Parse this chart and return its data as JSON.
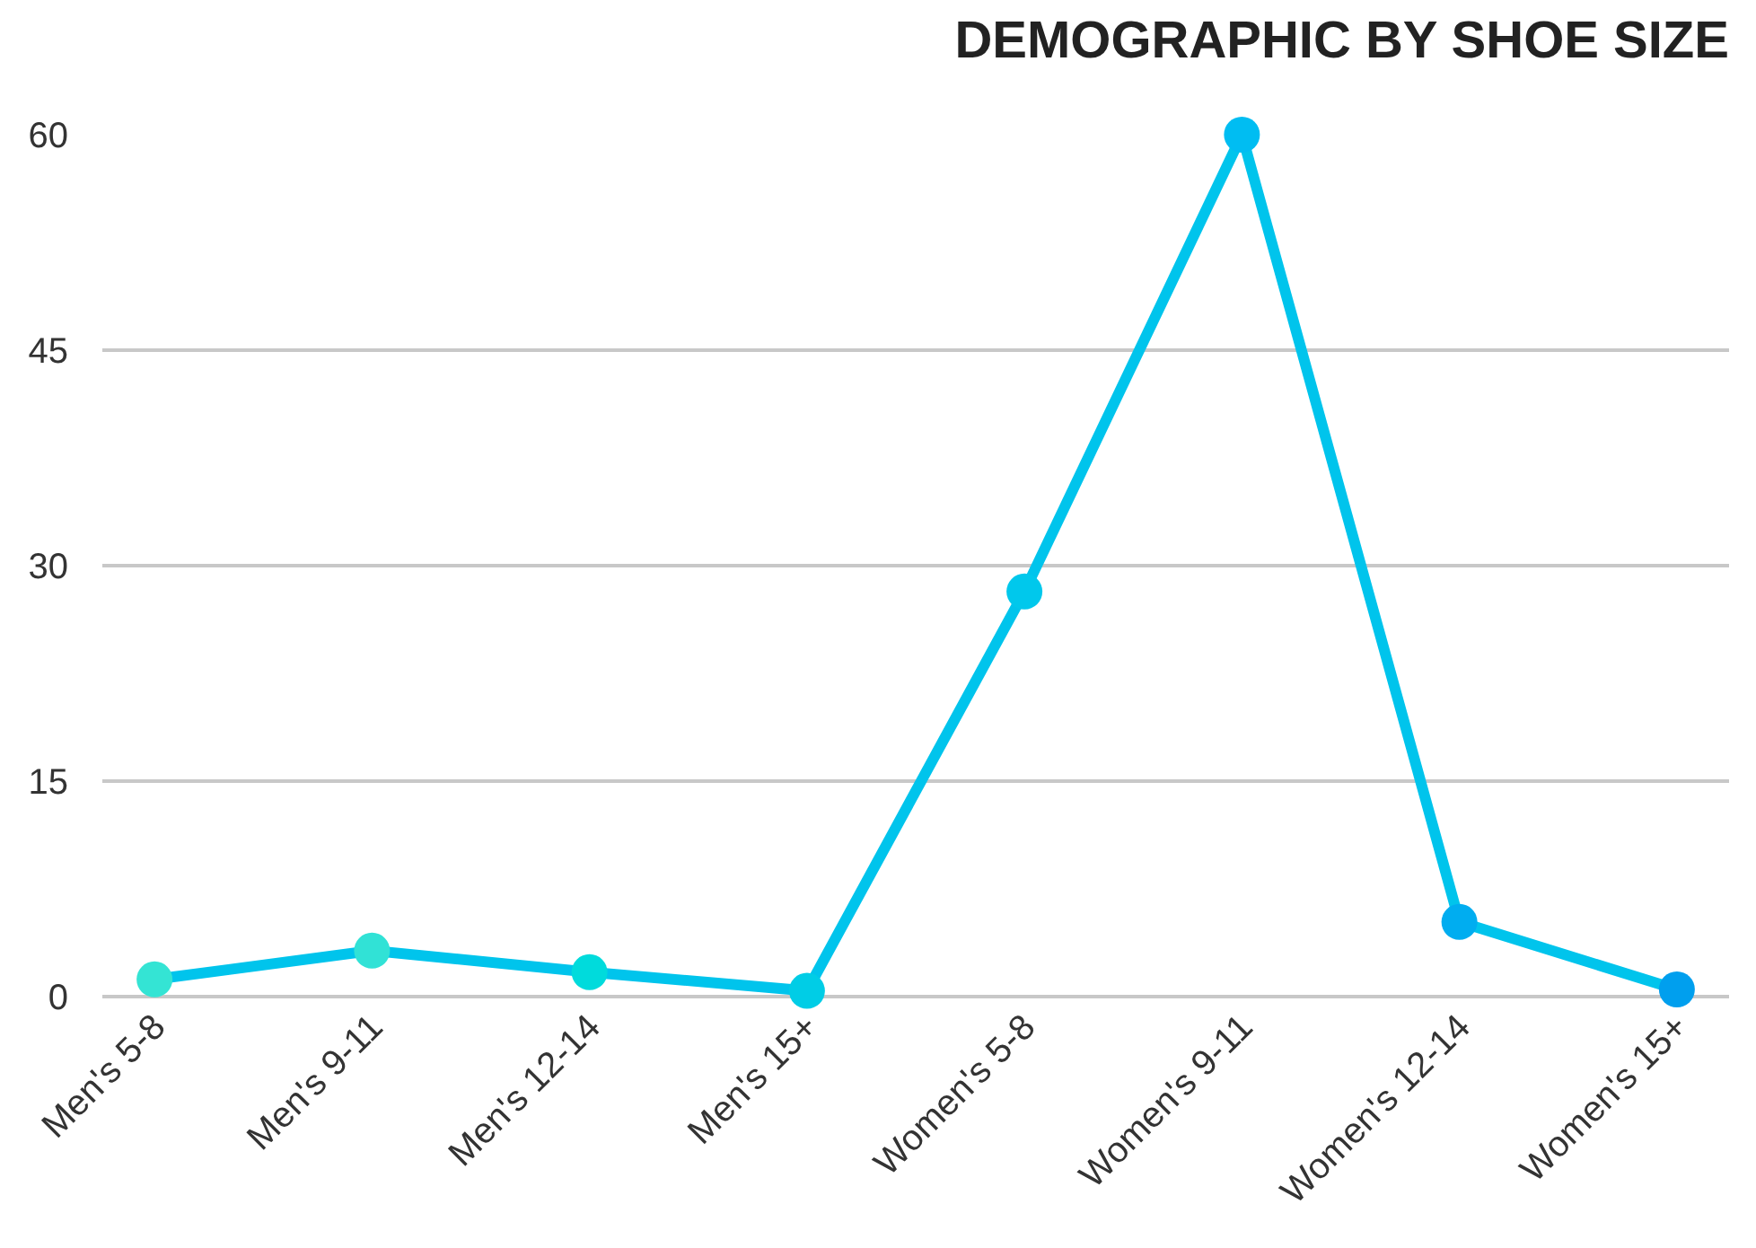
{
  "chart_data": {
    "type": "line",
    "title": "DEMOGRAPHIC BY SHOE SIZE",
    "categories": [
      "Men's 5-8",
      "Men's 9-11",
      "Men's 12-14",
      "Men's 15+",
      "Women's 5-8",
      "Women's 9-11",
      "Women's 12-14",
      "Women's 15+"
    ],
    "series": [
      {
        "color": "#00c4ec",
        "colors": [
          "#34e4d4",
          "#31e2d6",
          "#00dbdc",
          "#00cde6",
          "#00c8ec",
          "#00bdf2",
          "#00adf0",
          "#009fee"
        ],
        "values": [
          1.2,
          3.2,
          1.7,
          0.4,
          28.2,
          60,
          5.2,
          0.5
        ]
      }
    ],
    "ylim": [
      0,
      60
    ],
    "yticks": [
      0,
      15,
      30,
      45,
      60
    ],
    "grid": "y",
    "marker": "circle",
    "line_style": "solid"
  }
}
